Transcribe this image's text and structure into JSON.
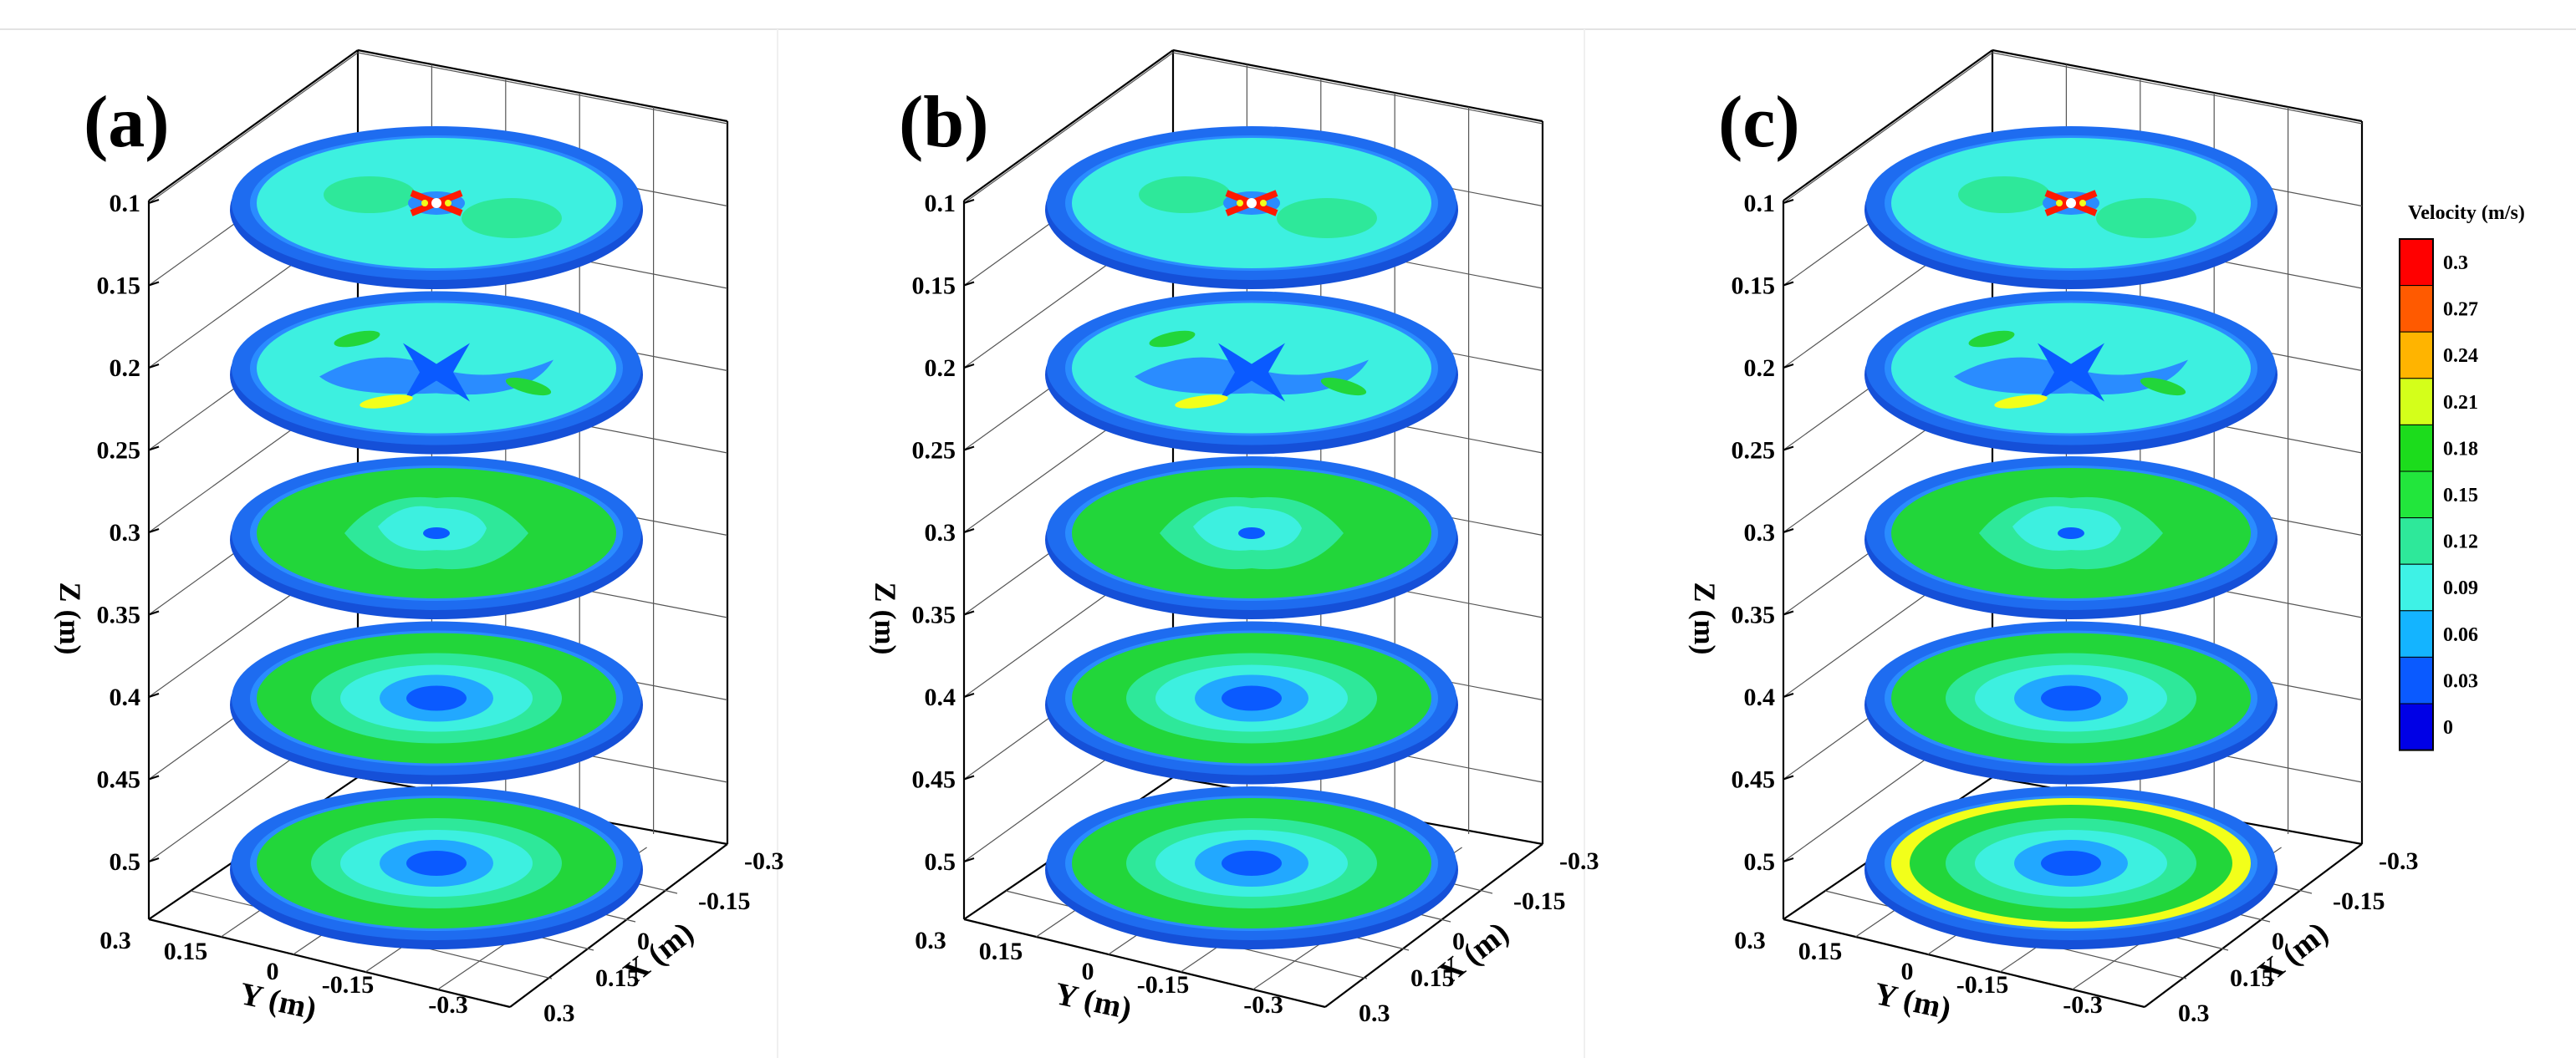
{
  "chart_data": {
    "type": "contour-3d",
    "panels": [
      {
        "label": "(a)",
        "z_ticks": [
          "0.1",
          "0.15",
          "0.2",
          "0.25",
          "0.3",
          "0.35",
          "0.4",
          "0.45",
          "0.5"
        ],
        "y_ticks": [
          "0.3",
          "0.15",
          "0",
          "-0.15",
          "-0.3"
        ],
        "x_ticks": [
          "-0.3",
          "-0.15",
          "0",
          "0.15",
          "0.3"
        ],
        "z_label": "Z (m)",
        "y_label": "Y (m)",
        "x_label": "X (m)",
        "slices": [
          {
            "z": 0.1,
            "pattern": "impeller"
          },
          {
            "z": 0.2,
            "pattern": "vortex"
          },
          {
            "z": 0.3,
            "pattern": "lobed"
          },
          {
            "z": 0.4,
            "pattern": "uniform"
          },
          {
            "z": 0.5,
            "pattern": "uniform"
          }
        ]
      },
      {
        "label": "(b)",
        "z_ticks": [
          "0.1",
          "0.15",
          "0.2",
          "0.25",
          "0.3",
          "0.35",
          "0.4",
          "0.45",
          "0.5"
        ],
        "y_ticks": [
          "0.3",
          "0.15",
          "0",
          "-0.15",
          "-0.3"
        ],
        "x_ticks": [
          "-0.3",
          "-0.15",
          "0",
          "0.15",
          "0.3"
        ],
        "z_label": "Z (m)",
        "y_label": "Y (m)",
        "x_label": "X (m)",
        "slices": [
          {
            "z": 0.1,
            "pattern": "impeller"
          },
          {
            "z": 0.2,
            "pattern": "vortex"
          },
          {
            "z": 0.3,
            "pattern": "lobed"
          },
          {
            "z": 0.4,
            "pattern": "uniform"
          },
          {
            "z": 0.5,
            "pattern": "uniform"
          }
        ]
      },
      {
        "label": "(c)",
        "z_ticks": [
          "0.1",
          "0.15",
          "0.2",
          "0.25",
          "0.3",
          "0.35",
          "0.4",
          "0.45",
          "0.5"
        ],
        "y_ticks": [
          "0.3",
          "0.15",
          "0",
          "-0.15",
          "-0.3"
        ],
        "x_ticks": [
          "-0.3",
          "-0.15",
          "0",
          "0.15",
          "0.3"
        ],
        "z_label": "Z (m)",
        "y_label": "Y (m)",
        "x_label": "X (m)",
        "slices": [
          {
            "z": 0.1,
            "pattern": "impeller"
          },
          {
            "z": 0.2,
            "pattern": "vortex"
          },
          {
            "z": 0.3,
            "pattern": "lobed"
          },
          {
            "z": 0.4,
            "pattern": "uniform"
          },
          {
            "z": 0.5,
            "pattern": "ring"
          }
        ]
      }
    ],
    "legend": {
      "title": "Velocity (m/s)",
      "levels": [
        "0.3",
        "0.27",
        "0.24",
        "0.21",
        "0.18",
        "0.15",
        "0.12",
        "0.09",
        "0.06",
        "0.03",
        "0"
      ],
      "colors": [
        "#ff0000",
        "#ff5a00",
        "#ffb400",
        "#d4ff1a",
        "#1cdc1c",
        "#22e63c",
        "#2ee89a",
        "#3ef2e6",
        "#14b4ff",
        "#0a5aff",
        "#0000e6"
      ]
    },
    "palette": {
      "wall": "#1e6cf0",
      "c_low": "#2a8cff",
      "c_mid": "#3df0e0",
      "c_mid2": "#2ee89a",
      "c_high": "#22d63a",
      "c_peak": "#f2ff1a",
      "c_max": "#ff1a00",
      "c_core": "#0a5aff"
    }
  }
}
